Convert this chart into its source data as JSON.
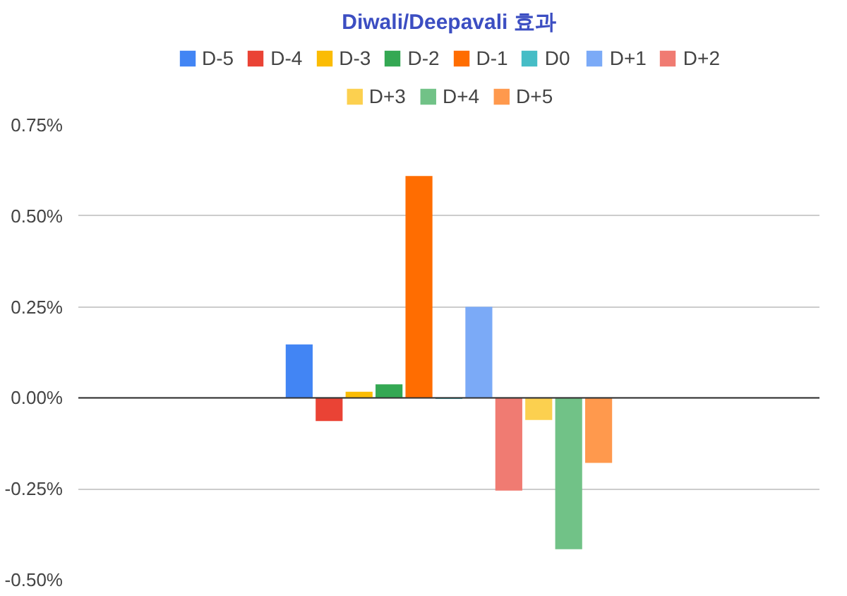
{
  "chart_data": {
    "type": "bar",
    "title": "Diwali/Deepavali 효과",
    "categories": [
      null
    ],
    "series": [
      {
        "name": "D-5",
        "color": "#4285f4",
        "values": [
          0.147
        ]
      },
      {
        "name": "D-4",
        "color": "#ea4335",
        "values": [
          -0.064
        ]
      },
      {
        "name": "D-3",
        "color": "#fbbc04",
        "values": [
          0.017
        ]
      },
      {
        "name": "D-2",
        "color": "#34a853",
        "values": [
          0.037
        ]
      },
      {
        "name": "D-1",
        "color": "#ff6d01",
        "values": [
          0.61
        ]
      },
      {
        "name": "D0",
        "color": "#46bdc6",
        "values": [
          -0.003
        ]
      },
      {
        "name": "D+1",
        "color": "#7baaf7",
        "values": [
          0.25
        ]
      },
      {
        "name": "D+2",
        "color": "#f07b72",
        "values": [
          -0.255
        ]
      },
      {
        "name": "D+3",
        "color": "#fcd04f",
        "values": [
          -0.061
        ]
      },
      {
        "name": "D+4",
        "color": "#71c287",
        "values": [
          -0.416
        ]
      },
      {
        "name": "D+5",
        "color": "#ff994d",
        "values": [
          -0.179
        ]
      }
    ],
    "ylim": [
      -0.5,
      0.75
    ],
    "yticks": [
      {
        "value": -0.5,
        "label": "-0.50%"
      },
      {
        "value": -0.25,
        "label": "-0.25%"
      },
      {
        "value": 0,
        "label": "0.00%"
      },
      {
        "value": 0.25,
        "label": "0.25%"
      },
      {
        "value": 0.5,
        "label": "0.50%"
      },
      {
        "value": 0.75,
        "label": "0.75%"
      }
    ],
    "grid": "y",
    "legend": "top"
  }
}
